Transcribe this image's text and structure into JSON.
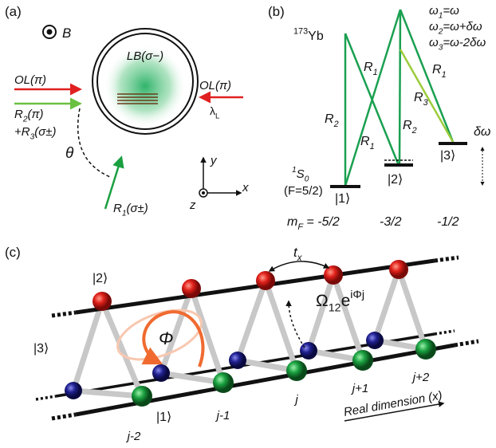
{
  "panel_a": {
    "label": "(a)",
    "field": [
      {
        "text": "B"
      }
    ],
    "ol_left": [
      {
        "text": "OL(π)"
      }
    ],
    "r2": [
      {
        "text": "R"
      },
      {
        "sub": "2"
      },
      {
        "text": "(π)"
      }
    ],
    "r3": [
      {
        "text": "+R"
      },
      {
        "sub": "3"
      },
      {
        "text": "(σ±)"
      }
    ],
    "lb": [
      {
        "text": "LB(σ−)"
      }
    ],
    "ol_right": [
      {
        "text": "OL(π)"
      }
    ],
    "lambda": [
      {
        "text": "λ"
      },
      {
        "sub": "L"
      }
    ],
    "theta": [
      {
        "text": "θ"
      }
    ],
    "r1": [
      {
        "text": "R"
      },
      {
        "sub": "1"
      },
      {
        "text": "(σ±)"
      }
    ],
    "axes": {
      "x": "x",
      "y": "y",
      "z": "z"
    }
  },
  "panel_b": {
    "label": "(b)",
    "isotope": [
      {
        "sup": "173"
      },
      {
        "text": "Yb"
      }
    ],
    "freqs": [
      [
        {
          "text": "ω"
        },
        {
          "sub": "1"
        },
        {
          "text": "=ω"
        }
      ],
      [
        {
          "text": "ω"
        },
        {
          "sub": "2"
        },
        {
          "text": "=ω+δω"
        }
      ],
      [
        {
          "text": "ω"
        },
        {
          "sub": "3"
        },
        {
          "text": "=ω-2δω"
        }
      ]
    ],
    "beams": [
      [
        {
          "text": "R"
        },
        {
          "sub": "1"
        }
      ],
      [
        {
          "text": "R"
        },
        {
          "sub": "2"
        }
      ],
      [
        {
          "text": "R"
        },
        {
          "sub": "1"
        }
      ],
      [
        {
          "text": "R"
        },
        {
          "sub": "2"
        }
      ],
      [
        {
          "text": "R"
        },
        {
          "sub": "3"
        }
      ],
      [
        {
          "text": "R"
        },
        {
          "sub": "1"
        }
      ]
    ],
    "detuning": [
      {
        "text": "δω"
      }
    ],
    "ground": [
      {
        "sup": "1"
      },
      {
        "text": "S"
      },
      {
        "sub": "0"
      }
    ],
    "spin": [
      {
        "text": "(F=5/2)"
      }
    ],
    "states": [
      "|1⟩",
      "|2⟩",
      "|3⟩"
    ],
    "mf": [
      [
        {
          "text": "m"
        },
        {
          "sub": "F"
        },
        {
          "text": " = -5/2"
        }
      ],
      [
        {
          "text": "-3/2"
        }
      ],
      [
        {
          "text": "-1/2"
        }
      ]
    ]
  },
  "panel_c": {
    "label": "(c)",
    "state_2": "|2⟩",
    "state_3": "|3⟩",
    "state_1": "|1⟩",
    "hopping": [
      {
        "text": "t"
      },
      {
        "sub": "x"
      }
    ],
    "coupling": [
      {
        "text": "Ω"
      },
      {
        "sub": "12"
      },
      {
        "text": "e"
      },
      {
        "sup": "iΦj"
      }
    ],
    "phase": [
      {
        "text": "Φ"
      }
    ],
    "sites": [
      "j-2",
      "j-1",
      "j",
      "j+1",
      "j+2"
    ],
    "axis": [
      {
        "text": "Real dimension (x)"
      }
    ]
  }
}
